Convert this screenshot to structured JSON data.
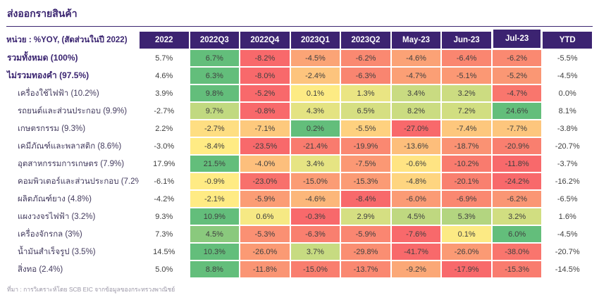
{
  "title": "ส่งออกรายสินค้า",
  "unit_label": "หน่วย : %YOY, (สัดส่วนในปี 2022)",
  "footer": "ที่มา : การวิเคราะห์โดย SCB EIC จากข้อมูลของกระทรวงพาณิชย์",
  "colors": {
    "header_bg": "#3c2371",
    "title_text": "#3a2470",
    "scale_red": "#f8696b",
    "scale_yellow": "#ffeb84",
    "scale_green": "#63be7b"
  },
  "chart_data": {
    "type": "heatmap",
    "columns": [
      "2022",
      "2022Q3",
      "2022Q4",
      "2023Q1",
      "2023Q2",
      "May-23",
      "Jun-23",
      "Jul-23",
      "YTD"
    ],
    "highlighted_column": "Jul-23",
    "heatmap_columns": [
      "2022Q3",
      "2022Q4",
      "2023Q1",
      "2023Q2",
      "May-23",
      "Jun-23",
      "Jul-23"
    ],
    "color_scale_note": "per-row 3-color scale: red at row min, yellow at 0, green at row max; 2022 and YTD columns uncolored",
    "unit": "%YOY",
    "rows": [
      {
        "label": "รวมทั้งหมด (100%)",
        "bold": true,
        "values": [
          5.7,
          6.7,
          -8.2,
          -4.5,
          -6.2,
          -4.6,
          -6.4,
          -6.2,
          -5.5
        ]
      },
      {
        "label": "ไม่รวมทองคำ (97.5%)",
        "bold": true,
        "values": [
          4.6,
          6.3,
          -8.0,
          -2.4,
          -6.3,
          -4.7,
          -5.1,
          -5.2,
          -4.5
        ]
      },
      {
        "label": "เครื่องใช้ไฟฟ้า (10.2%)",
        "bold": false,
        "values": [
          3.9,
          9.8,
          -5.2,
          0.1,
          1.3,
          3.4,
          3.2,
          -4.7,
          0.0
        ]
      },
      {
        "label": "รถยนต์และส่วนประกอบ (9.9%)",
        "bold": false,
        "values": [
          -2.7,
          9.7,
          -0.8,
          4.3,
          6.5,
          8.2,
          7.2,
          24.6,
          8.1
        ]
      },
      {
        "label": "เกษตรกรรม (9.3%)",
        "bold": false,
        "values": [
          2.2,
          -2.7,
          -7.1,
          0.2,
          -5.5,
          -27.0,
          -7.4,
          -7.7,
          -3.8
        ]
      },
      {
        "label": "เคมีภัณฑ์และพลาสติก (8.6%)",
        "bold": false,
        "values": [
          -3.0,
          -8.4,
          -23.5,
          -21.4,
          -19.9,
          -13.6,
          -18.7,
          -20.9,
          -20.7
        ]
      },
      {
        "label": "อุตสาหกรรมการเกษตร (7.9%)",
        "bold": false,
        "values": [
          17.9,
          21.5,
          -4.0,
          3.4,
          -7.5,
          -0.6,
          -10.2,
          -11.8,
          -3.7
        ]
      },
      {
        "label": "คอมพิวเตอร์และส่วนประกอบ (7.2%)",
        "bold": false,
        "values": [
          -6.1,
          -0.9,
          -23.0,
          -15.0,
          -15.3,
          -4.8,
          -20.1,
          -24.2,
          -16.2
        ]
      },
      {
        "label": "ผลิตภัณฑ์ยาง (4.8%)",
        "bold": false,
        "values": [
          -4.2,
          -2.1,
          -5.9,
          -4.6,
          -8.4,
          -6.0,
          -6.9,
          -6.2,
          -6.5
        ]
      },
      {
        "label": "แผงวงจรไฟฟ้า (3.2%)",
        "bold": false,
        "values": [
          9.3,
          10.9,
          0.6,
          -0.3,
          2.9,
          4.5,
          5.3,
          3.2,
          1.6
        ]
      },
      {
        "label": "เครื่องจักรกล (3%)",
        "bold": false,
        "values": [
          7.3,
          4.5,
          -5.3,
          -6.3,
          -5.9,
          -7.6,
          0.1,
          6.0,
          -4.5
        ]
      },
      {
        "label": "น้ำมันสำเร็จรูป (3.5%)",
        "bold": false,
        "values": [
          14.5,
          10.3,
          -26.0,
          3.7,
          -29.8,
          -41.7,
          -26.0,
          -38.0,
          -20.7
        ]
      },
      {
        "label": "สิ่งทอ (2.4%)",
        "bold": false,
        "values": [
          5.0,
          8.8,
          -11.8,
          -15.0,
          -13.7,
          -9.2,
          -17.9,
          -15.3,
          -14.5
        ]
      }
    ]
  }
}
